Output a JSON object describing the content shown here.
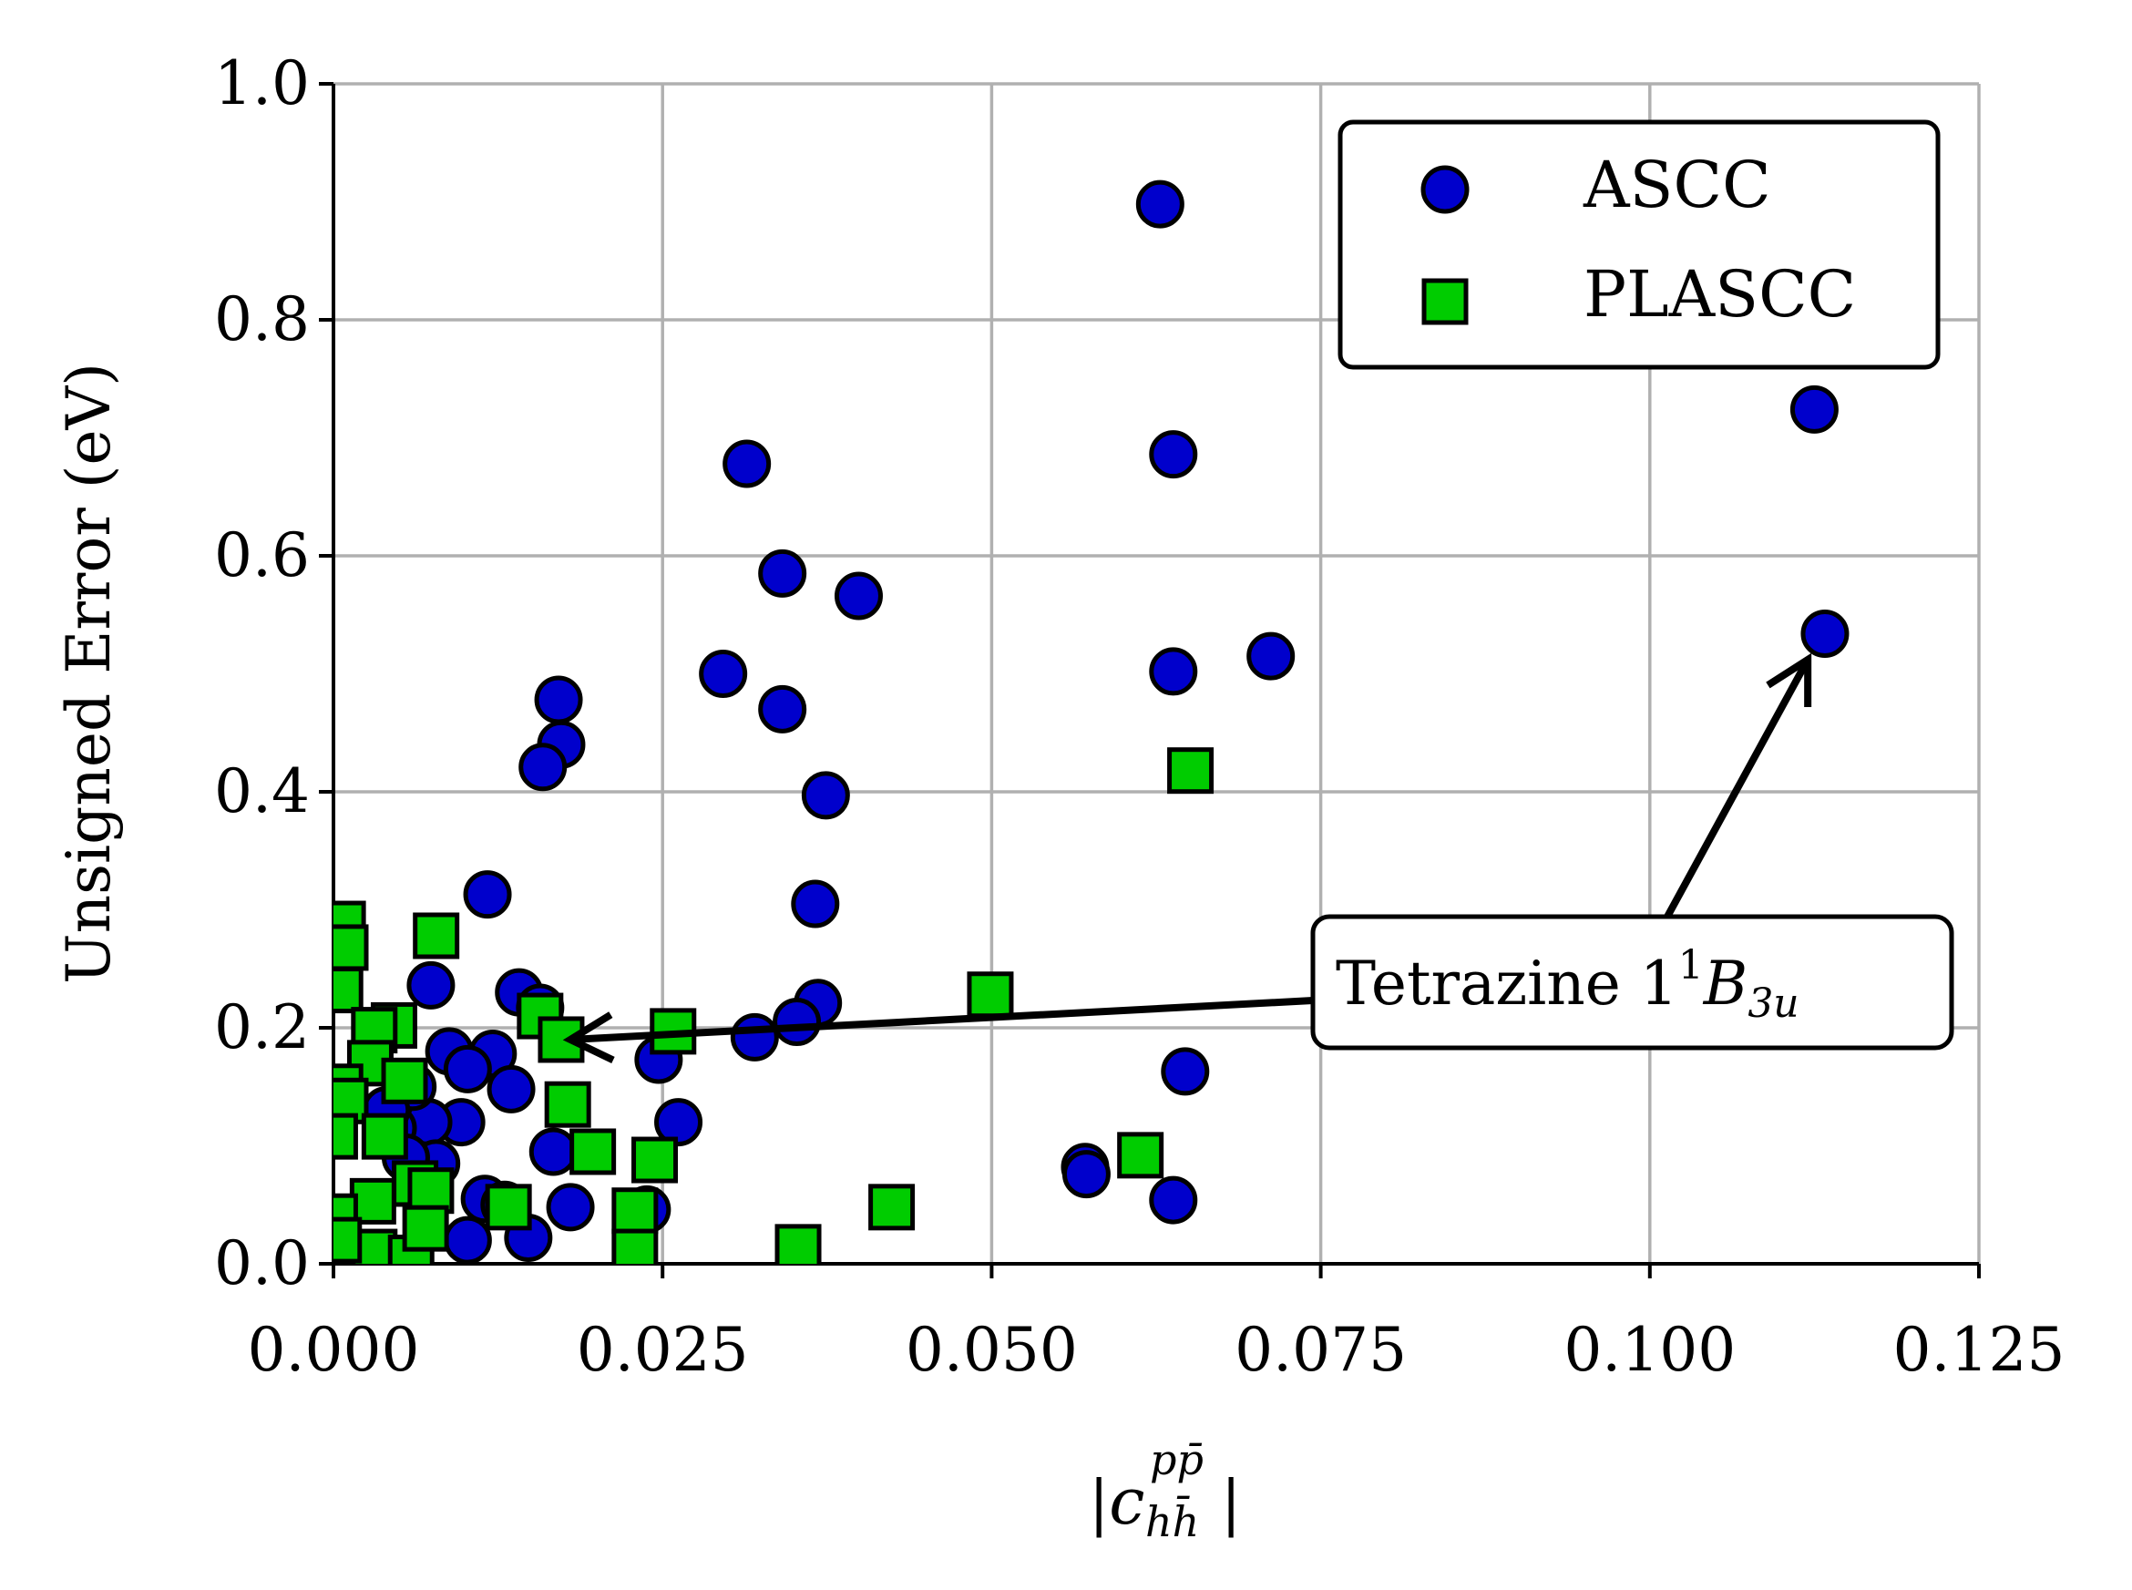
{
  "chart_data": {
    "type": "scatter",
    "title": "",
    "xlabel": "|c_{hh̄}^{pp̄}|",
    "xlabel_parts": {
      "bar_left": "|",
      "base": "c",
      "sup": "pp̄",
      "sub": "hh̄",
      "bar_right": "|"
    },
    "ylabel": "Unsigned Error (eV)",
    "xlim": [
      0.0,
      0.125
    ],
    "ylim": [
      0.0,
      1.0
    ],
    "xticks": [
      0.0,
      0.025,
      0.05,
      0.075,
      0.1,
      0.125
    ],
    "xtick_labels": [
      "0.000",
      "0.025",
      "0.050",
      "0.075",
      "0.100",
      "0.125"
    ],
    "yticks": [
      0.0,
      0.2,
      0.4,
      0.6,
      0.8,
      1.0
    ],
    "ytick_labels": [
      "0.0",
      "0.2",
      "0.4",
      "0.6",
      "0.8",
      "1.0"
    ],
    "grid": true,
    "legend_position": "top-right",
    "series": [
      {
        "name": "ASCC",
        "marker": "circle",
        "color": "#0000cc",
        "edgecolor": "#000000",
        "points": [
          [
            0.0628,
            0.898
          ],
          [
            0.1125,
            0.724
          ],
          [
            0.0314,
            0.678
          ],
          [
            0.0638,
            0.686
          ],
          [
            0.0341,
            0.585
          ],
          [
            0.0399,
            0.566
          ],
          [
            0.0296,
            0.5
          ],
          [
            0.0638,
            0.502
          ],
          [
            0.0712,
            0.515
          ],
          [
            0.1133,
            0.534
          ],
          [
            0.0341,
            0.47
          ],
          [
            0.0171,
            0.478
          ],
          [
            0.0173,
            0.44
          ],
          [
            0.0159,
            0.421
          ],
          [
            0.0374,
            0.397
          ],
          [
            0.0366,
            0.305
          ],
          [
            0.0117,
            0.313
          ],
          [
            0.0368,
            0.221
          ],
          [
            0.0352,
            0.205
          ],
          [
            0.032,
            0.192
          ],
          [
            0.0074,
            0.236
          ],
          [
            0.0141,
            0.23
          ],
          [
            0.0157,
            0.217
          ],
          [
            0.0247,
            0.173
          ],
          [
            0.0647,
            0.163
          ],
          [
            0.0262,
            0.12
          ],
          [
            0.0571,
            0.082
          ],
          [
            0.0572,
            0.076
          ],
          [
            0.0638,
            0.054
          ],
          [
            0.0088,
            0.18
          ],
          [
            0.0121,
            0.178
          ],
          [
            0.0102,
            0.165
          ],
          [
            0.0135,
            0.148
          ],
          [
            0.0097,
            0.12
          ],
          [
            0.0072,
            0.12
          ],
          [
            0.0167,
            0.095
          ],
          [
            0.0078,
            0.085
          ],
          [
            0.0045,
            0.115
          ],
          [
            0.018,
            0.048
          ],
          [
            0.0238,
            0.046
          ],
          [
            0.0148,
            0.022
          ],
          [
            0.0102,
            0.02
          ],
          [
            0.0115,
            0.055
          ],
          [
            0.013,
            0.05
          ],
          [
            0.006,
            0.15
          ],
          [
            0.004,
            0.13
          ],
          [
            0.0055,
            0.09
          ]
        ]
      },
      {
        "name": "PLASCC",
        "marker": "square",
        "color": "#00cc00",
        "edgecolor": "#000000",
        "points": [
          [
            0.0651,
            0.418
          ],
          [
            0.0007,
            0.288
          ],
          [
            0.0009,
            0.268
          ],
          [
            0.0078,
            0.278
          ],
          [
            0.0499,
            0.228
          ],
          [
            0.0005,
            0.232
          ],
          [
            0.0157,
            0.21
          ],
          [
            0.0173,
            0.19
          ],
          [
            0.0258,
            0.197
          ],
          [
            0.0046,
            0.202
          ],
          [
            0.0031,
            0.198
          ],
          [
            0.0028,
            0.17
          ],
          [
            0.0054,
            0.155
          ],
          [
            0.0005,
            0.15
          ],
          [
            0.0009,
            0.138
          ],
          [
            0.0178,
            0.135
          ],
          [
            0.0039,
            0.108
          ],
          [
            0.0001,
            0.108
          ],
          [
            0.0197,
            0.095
          ],
          [
            0.0244,
            0.088
          ],
          [
            0.0613,
            0.092
          ],
          [
            0.0424,
            0.048
          ],
          [
            0.0229,
            0.045
          ],
          [
            0.0133,
            0.048
          ],
          [
            0.003,
            0.053
          ],
          [
            0.0062,
            0.068
          ],
          [
            0.0074,
            0.062
          ],
          [
            0.0353,
            0.014
          ],
          [
            0.0229,
            0.01
          ],
          [
            0.0031,
            0.01
          ],
          [
            0.0059,
            0.005
          ],
          [
            0.0001,
            0.04
          ],
          [
            0.0004,
            0.02
          ],
          [
            0.007,
            0.03
          ]
        ]
      }
    ],
    "annotation": {
      "text_prefix": "Tetrazine 1",
      "sup": "1",
      "italic_base": "B",
      "sub": "3u",
      "arrows_to": [
        [
          0.018,
          0.19
        ],
        [
          0.112,
          0.512
        ]
      ]
    }
  },
  "legend": {
    "items": [
      "ASCC",
      "PLASCC"
    ]
  }
}
